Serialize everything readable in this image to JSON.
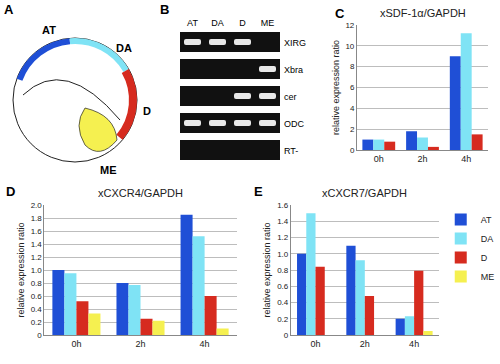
{
  "panels": [
    "A",
    "B",
    "C",
    "D",
    "E"
  ],
  "diagram": {
    "regions": [
      "AT",
      "DA",
      "D",
      "ME"
    ]
  },
  "gel": {
    "lanes": [
      "AT",
      "DA",
      "D",
      "ME"
    ],
    "rows": [
      {
        "name": "XIRG",
        "bands": [
          true,
          true,
          true,
          false
        ]
      },
      {
        "name": "Xbra",
        "bands": [
          false,
          false,
          false,
          true
        ]
      },
      {
        "name": "cer",
        "bands": [
          false,
          false,
          true,
          true
        ]
      },
      {
        "name": "ODC",
        "bands": [
          true,
          true,
          true,
          true
        ]
      },
      {
        "name": "RT-",
        "bands": [
          false,
          false,
          false,
          false
        ]
      }
    ]
  },
  "chart_data": [
    {
      "type": "bar",
      "title": "xSDF-1α/GAPDH",
      "y_label": "relative expression ratio",
      "categories": [
        "0h",
        "2h",
        "4h"
      ],
      "series": [
        {
          "name": "AT",
          "color": "#1f4fd6",
          "values": [
            1.0,
            1.8,
            9.0
          ]
        },
        {
          "name": "DA",
          "color": "#7fe3f5",
          "values": [
            1.0,
            1.2,
            11.2
          ]
        },
        {
          "name": "D",
          "color": "#d62b1f",
          "values": [
            0.8,
            0.3,
            1.5
          ]
        }
      ],
      "ylim": [
        0,
        12
      ],
      "yticks": [
        0,
        2,
        4,
        6,
        8,
        10,
        12
      ],
      "grid": true
    },
    {
      "type": "bar",
      "title": "xCXCR4/GAPDH",
      "y_label": "relative expression ratio",
      "categories": [
        "0h",
        "2h",
        "4h"
      ],
      "series": [
        {
          "name": "AT",
          "color": "#1f4fd6",
          "values": [
            1.0,
            0.8,
            1.85
          ]
        },
        {
          "name": "DA",
          "color": "#7fe3f5",
          "values": [
            0.95,
            0.77,
            1.52
          ]
        },
        {
          "name": "D",
          "color": "#d62b1f",
          "values": [
            0.52,
            0.25,
            0.6
          ]
        },
        {
          "name": "ME",
          "color": "#f5f050",
          "values": [
            0.33,
            0.22,
            0.1
          ]
        }
      ],
      "ylim": [
        0,
        2
      ],
      "yticks": [
        0,
        0.2,
        0.4,
        0.6,
        0.8,
        {
          "value": 1,
          "label": "1.0"
        },
        1.2,
        1.4,
        1.6,
        1.8,
        {
          "value": 2,
          "label": "2.0"
        }
      ],
      "grid": true
    },
    {
      "type": "bar",
      "title": "xCXCR7/GAPDH",
      "y_label": "relative expression ratio",
      "categories": [
        "0h",
        "2h",
        "4h"
      ],
      "series": [
        {
          "name": "AT",
          "color": "#1f4fd6",
          "values": [
            1.0,
            1.1,
            0.2
          ]
        },
        {
          "name": "DA",
          "color": "#7fe3f5",
          "values": [
            1.5,
            0.92,
            0.23
          ]
        },
        {
          "name": "D",
          "color": "#d62b1f",
          "values": [
            0.84,
            0.48,
            0.79
          ]
        },
        {
          "name": "ME",
          "color": "#f5f050",
          "values": [
            null,
            null,
            0.05
          ]
        }
      ],
      "ylim": [
        0,
        1.6
      ],
      "yticks": [
        0,
        0.2,
        0.4,
        0.6,
        0.8,
        {
          "value": 1,
          "label": "1.0"
        },
        1.2,
        1.4,
        1.6
      ],
      "grid": true,
      "legend": "upper right"
    }
  ]
}
